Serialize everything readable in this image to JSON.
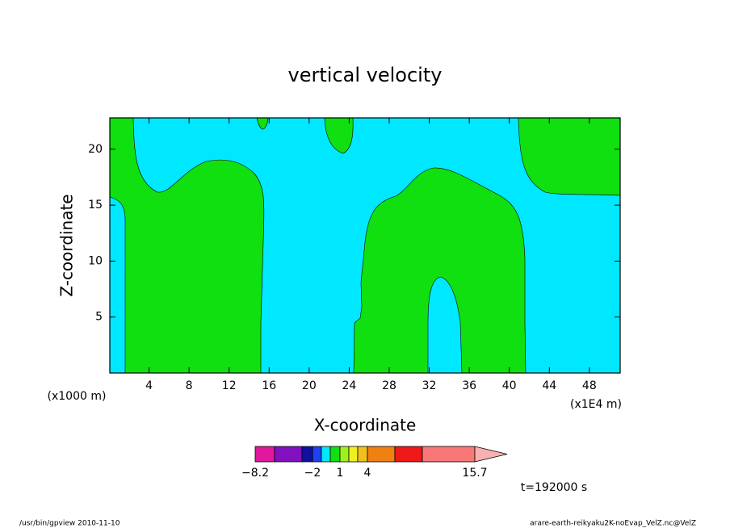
{
  "chart_data": {
    "type": "contour",
    "title": "vertical velocity",
    "x_label": "X-coordinate",
    "y_label": "Z-coordinate",
    "x_unit_label": "(x1000 m)",
    "x_unit_label_right": "(x1E4 m)",
    "time_label": "t=192000 s",
    "xlim": [
      0,
      51
    ],
    "ylim": [
      0,
      22.8
    ],
    "xticks": [
      4,
      8,
      12,
      16,
      20,
      24,
      28,
      32,
      36,
      40,
      44,
      48
    ],
    "yticks": [
      5,
      10,
      15,
      20
    ],
    "colorbar": {
      "colors": [
        "#e0189e",
        "#8010c0",
        "#1010a0",
        "#2040f0",
        "#00e8f8",
        "#10e010",
        "#a0f020",
        "#f0f020",
        "#f0c020",
        "#f08010",
        "#f01818",
        "#f87878",
        "#f8b0b0"
      ],
      "ticks": [
        {
          "value": -8.2,
          "label": "−8.2"
        },
        {
          "value": -2,
          "label": "−2"
        },
        1,
        4,
        15.7
      ]
    },
    "footer_left": "/usr/bin/gpview   2010-11-10",
    "footer_right": "arare-earth-reikyaku2K-noEvap_VelZ.nc@VelZ"
  }
}
